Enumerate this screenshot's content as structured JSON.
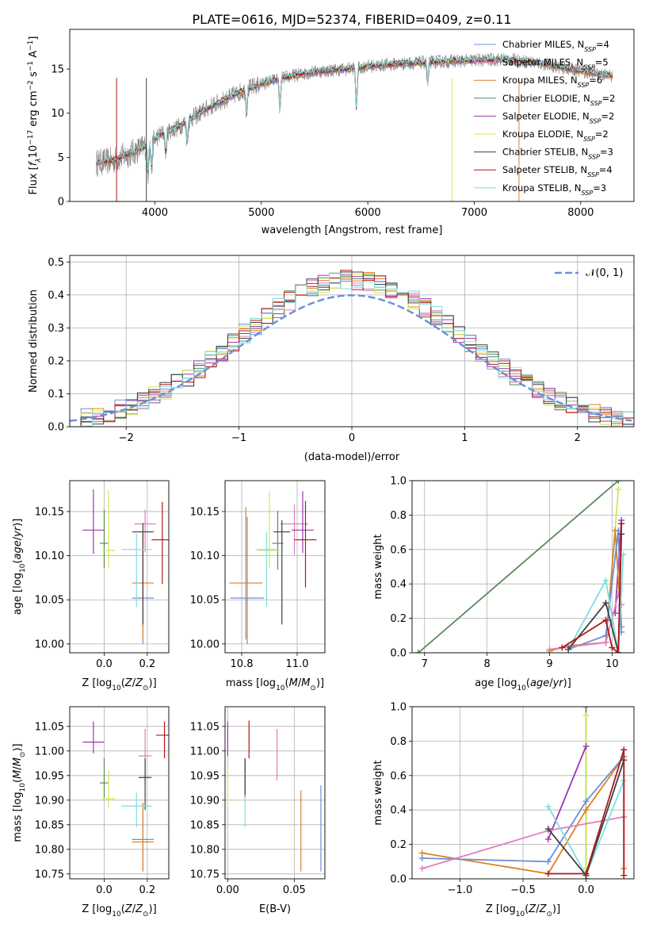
{
  "figure": {
    "title": "PLATE=0616, MJD=52374, FIBERID=0409, z=0.11"
  },
  "colors": {
    "Chabrier MILES": "#6a8fd8",
    "Salpeter MILES": "#e07fbd",
    "Kroupa MILES": "#e08020",
    "Chabrier ELODIE": "#5a8a5a",
    "Salpeter ELODIE": "#9a38b0",
    "Kroupa ELODIE": "#d0e850",
    "Chabrier STELIB": "#404040",
    "Salpeter STELIB": "#b01818",
    "Kroupa STELIB": "#7fdde0",
    "gray_data": "#808080",
    "normal_curve": "#6a8fd8"
  },
  "chart_data": [
    {
      "id": "spectrum",
      "type": "line",
      "xlabel": "wavelength [Angstrom, rest frame]",
      "ylabel": "Flux [f_λ10^-17 erg cm^-2 s^-1 A^-1]",
      "xlim": [
        3200,
        8500
      ],
      "ylim": [
        0,
        19.5
      ],
      "xticks": [
        4000,
        5000,
        6000,
        7000,
        8000
      ],
      "yticks": [
        0,
        5,
        10,
        15
      ],
      "legend_position": "upper-right",
      "legend": [
        {
          "label": "Chabrier MILES, N_SSP=4",
          "color_key": "Chabrier MILES"
        },
        {
          "label": "Salpeter MILES, N_SSP=5",
          "color_key": "Salpeter MILES"
        },
        {
          "label": "Kroupa MILES, N_SSP=6",
          "color_key": "Kroupa MILES"
        },
        {
          "label": "Chabrier ELODIE, N_SSP=2",
          "color_key": "Chabrier ELODIE"
        },
        {
          "label": "Salpeter ELODIE, N_SSP=2",
          "color_key": "Salpeter ELODIE"
        },
        {
          "label": "Kroupa ELODIE, N_SSP=2",
          "color_key": "Kroupa ELODIE"
        },
        {
          "label": "Chabrier STELIB, N_SSP=3",
          "color_key": "Chabrier STELIB"
        },
        {
          "label": "Salpeter STELIB, N_SSP=4",
          "color_key": "Salpeter STELIB"
        },
        {
          "label": "Kroupa STELIB, N_SSP=3",
          "color_key": "Kroupa STELIB"
        }
      ],
      "continuum_points": [
        [
          3450,
          4.4
        ],
        [
          3600,
          4.6
        ],
        [
          3800,
          5.6
        ],
        [
          3950,
          6.5
        ],
        [
          4050,
          7.6
        ],
        [
          4200,
          8.3
        ],
        [
          4500,
          10.6
        ],
        [
          4800,
          12.4
        ],
        [
          5000,
          13.3
        ],
        [
          5200,
          14.0
        ],
        [
          5500,
          14.7
        ],
        [
          5800,
          15.0
        ],
        [
          6000,
          15.3
        ],
        [
          6300,
          15.6
        ],
        [
          6600,
          15.8
        ],
        [
          7000,
          16.0
        ],
        [
          7300,
          16.1
        ],
        [
          7600,
          15.7
        ],
        [
          7900,
          15.0
        ],
        [
          8300,
          14.2
        ]
      ]
    },
    {
      "id": "residuals",
      "type": "line",
      "xlabel": "(data-model)/error",
      "ylabel": "Normed distribution",
      "xlim": [
        -2.5,
        2.5
      ],
      "ylim": [
        0,
        0.52
      ],
      "xticks": [
        -2,
        -1,
        0,
        1,
        2
      ],
      "yticks": [
        0.0,
        0.1,
        0.2,
        0.3,
        0.4,
        0.5
      ],
      "grid": true,
      "legend_position": "upper-right",
      "legend": [
        {
          "label": "𝒩(0, 1)"
        }
      ],
      "bin_width": 0.1
    },
    {
      "id": "age_vs_Z",
      "type": "scatter",
      "xlabel": "Z [log10(Z/Z⊙)]",
      "ylabel": "age [log10(age/yr)]",
      "xlim": [
        -0.16,
        0.3
      ],
      "ylim": [
        9.99,
        10.185
      ],
      "xticks": [
        0.0,
        0.2
      ],
      "yticks": [
        10.0,
        10.05,
        10.1,
        10.15
      ],
      "grid": true,
      "points": [
        {
          "m": "Chabrier MILES",
          "x": 0.18,
          "xerr": 0.05,
          "y": 10.052,
          "ye": [
            10.0,
            10.127
          ]
        },
        {
          "m": "Salpeter MILES",
          "x": 0.19,
          "xerr": 0.05,
          "y": 10.136,
          "ye": [
            10.104,
            10.152
          ]
        },
        {
          "m": "Kroupa MILES",
          "x": 0.18,
          "xerr": 0.05,
          "y": 10.069,
          "ye": [
            10.005,
            10.127
          ]
        },
        {
          "m": "Chabrier ELODIE",
          "x": 0.0,
          "xerr": 0.02,
          "y": 10.114,
          "ye": [
            10.086,
            10.152
          ]
        },
        {
          "m": "Salpeter ELODIE",
          "x": -0.05,
          "xerr": 0.05,
          "y": 10.129,
          "ye": [
            10.102,
            10.175
          ]
        },
        {
          "m": "Kroupa ELODIE",
          "x": 0.02,
          "xerr": 0.03,
          "y": 10.106,
          "ye": [
            10.086,
            10.174
          ]
        },
        {
          "m": "Chabrier STELIB",
          "x": 0.18,
          "xerr": 0.05,
          "y": 10.127,
          "ye": [
            10.022,
            10.137
          ]
        },
        {
          "m": "Salpeter STELIB",
          "x": 0.27,
          "xerr": 0.05,
          "y": 10.118,
          "ye": [
            10.068,
            10.161
          ]
        },
        {
          "m": "Kroupa STELIB",
          "x": 0.15,
          "xerr": 0.07,
          "y": 10.107,
          "ye": [
            10.042,
            10.125
          ]
        }
      ]
    },
    {
      "id": "age_vs_mass",
      "type": "scatter",
      "xlabel": "mass [log10(M/M⊙)]",
      "ylabel": "",
      "xlim": [
        10.74,
        11.1
      ],
      "ylim": [
        9.99,
        10.185
      ],
      "xticks": [
        10.8,
        11.0
      ],
      "yticks": [
        10.0,
        10.05,
        10.1,
        10.15
      ],
      "grid": true,
      "points": [
        {
          "m": "Chabrier MILES",
          "x": 10.82,
          "xerr": 0.06,
          "y": 10.052,
          "ye": [
            10.0,
            10.144
          ]
        },
        {
          "m": "Salpeter MILES",
          "x": 10.99,
          "xerr": 0.05,
          "y": 10.136,
          "ye": [
            10.101,
            10.158
          ]
        },
        {
          "m": "Kroupa MILES",
          "x": 10.815,
          "xerr": 0.06,
          "y": 10.069,
          "ye": [
            10.005,
            10.155
          ]
        },
        {
          "m": "Chabrier ELODIE",
          "x": 10.93,
          "xerr": 0.02,
          "y": 10.114,
          "ye": [
            10.084,
            10.151
          ]
        },
        {
          "m": "Salpeter ELODIE",
          "x": 11.02,
          "xerr": 0.04,
          "y": 10.129,
          "ye": [
            10.103,
            10.173
          ]
        },
        {
          "m": "Kroupa ELODIE",
          "x": 10.9,
          "xerr": 0.04,
          "y": 10.106,
          "ye": [
            10.086,
            10.173
          ]
        },
        {
          "m": "Chabrier STELIB",
          "x": 10.945,
          "xerr": 0.03,
          "y": 10.127,
          "ye": [
            10.022,
            10.14
          ]
        },
        {
          "m": "Salpeter STELIB",
          "x": 11.03,
          "xerr": 0.04,
          "y": 10.118,
          "ye": [
            10.064,
            10.162
          ]
        },
        {
          "m": "Kroupa STELIB",
          "x": 10.89,
          "xerr": 0.04,
          "y": 10.107,
          "ye": [
            10.042,
            10.127
          ]
        }
      ]
    },
    {
      "id": "weight_vs_age",
      "type": "line",
      "xlabel": "age [log10(age/yr)]",
      "ylabel": "mass weight",
      "xlim": [
        6.8,
        10.35
      ],
      "ylim": [
        0,
        1.0
      ],
      "xticks": [
        7,
        8,
        9,
        10
      ],
      "yticks": [
        0.0,
        0.2,
        0.4,
        0.6,
        0.8,
        1.0
      ],
      "grid": true,
      "series": [
        {
          "m": "Chabrier ELODIE",
          "x": [
            6.9,
            10.1
          ],
          "y": [
            0.0,
            1.0
          ]
        },
        {
          "m": "Kroupa ELODIE",
          "x": [
            9.9,
            10.1
          ],
          "y": [
            0.06,
            0.95
          ]
        },
        {
          "m": "Salpeter ELODIE",
          "x": [
            10.05,
            10.15
          ],
          "y": [
            0.23,
            0.77
          ]
        },
        {
          "m": "Kroupa MILES",
          "x": [
            9.0,
            9.3,
            9.9,
            10.05,
            10.15
          ],
          "y": [
            0.01,
            0.04,
            0.06,
            0.71,
            0.15
          ]
        },
        {
          "m": "Chabrier MILES",
          "x": [
            9.3,
            9.9,
            10.1,
            10.15
          ],
          "y": [
            0.02,
            0.1,
            0.71,
            0.12
          ]
        },
        {
          "m": "Salpeter MILES",
          "x": [
            9.0,
            9.9,
            10.1,
            10.15
          ],
          "y": [
            0.02,
            0.06,
            0.34,
            0.28
          ]
        },
        {
          "m": "Kroupa STELIB",
          "x": [
            9.3,
            9.9,
            10.1,
            10.18
          ],
          "y": [
            0.02,
            0.42,
            0.0,
            0.57
          ]
        },
        {
          "m": "Chabrier STELIB",
          "x": [
            9.3,
            9.9,
            10.1,
            10.15
          ],
          "y": [
            0.02,
            0.29,
            0.0,
            0.69
          ]
        },
        {
          "m": "Salpeter STELIB",
          "x": [
            9.2,
            9.9,
            10.0,
            10.1,
            10.15
          ],
          "y": [
            0.03,
            0.19,
            0.03,
            0.0,
            0.75
          ]
        }
      ]
    },
    {
      "id": "mass_vs_Z",
      "type": "scatter",
      "xlabel": "Z [log10(Z/Z⊙)]",
      "ylabel": "mass [log10(M/M⊙)]",
      "xlim": [
        -0.16,
        0.3
      ],
      "ylim": [
        10.74,
        11.09
      ],
      "xticks": [
        0.0,
        0.2
      ],
      "yticks": [
        10.75,
        10.8,
        10.85,
        10.9,
        10.95,
        11.0,
        11.05
      ],
      "grid": true,
      "points": [
        {
          "m": "Chabrier MILES",
          "x": 0.18,
          "xerr": 0.05,
          "y": 10.82,
          "ye": [
            10.755,
            10.895
          ]
        },
        {
          "m": "Salpeter MILES",
          "x": 0.19,
          "xerr": 0.03,
          "y": 10.99,
          "ye": [
            10.93,
            11.045
          ]
        },
        {
          "m": "Kroupa MILES",
          "x": 0.18,
          "xerr": 0.05,
          "y": 10.815,
          "ye": [
            10.755,
            10.895
          ]
        },
        {
          "m": "Chabrier ELODIE",
          "x": 0.0,
          "xerr": 0.02,
          "y": 10.935,
          "ye": [
            10.905,
            10.985
          ]
        },
        {
          "m": "Salpeter ELODIE",
          "x": -0.05,
          "xerr": 0.05,
          "y": 11.018,
          "ye": [
            10.995,
            11.06
          ]
        },
        {
          "m": "Kroupa ELODIE",
          "x": 0.02,
          "xerr": 0.03,
          "y": 10.903,
          "ye": [
            10.885,
            10.96
          ]
        },
        {
          "m": "Chabrier STELIB",
          "x": 0.19,
          "xerr": 0.03,
          "y": 10.946,
          "ye": [
            10.88,
            10.985
          ]
        },
        {
          "m": "Salpeter STELIB",
          "x": 0.28,
          "xerr": 0.04,
          "y": 11.032,
          "ye": [
            10.985,
            11.06
          ]
        },
        {
          "m": "Kroupa STELIB",
          "x": 0.15,
          "xerr": 0.07,
          "y": 10.888,
          "ye": [
            10.845,
            10.915
          ]
        }
      ]
    },
    {
      "id": "mass_vs_ebv",
      "type": "scatter",
      "xlabel": "E(B-V)",
      "ylabel": "",
      "xlim": [
        -0.002,
        0.073
      ],
      "ylim": [
        10.74,
        11.09
      ],
      "xticks": [
        0.0,
        0.05
      ],
      "yticks": [
        10.75,
        10.8,
        10.85,
        10.9,
        10.95,
        11.0,
        11.05
      ],
      "grid": true,
      "points": [
        {
          "m": "Chabrier MILES",
          "x": 0.07,
          "xerr": 0,
          "y": 10.82,
          "ye": [
            10.755,
            10.93
          ]
        },
        {
          "m": "Salpeter MILES",
          "x": 0.037,
          "xerr": 0,
          "y": 10.99,
          "ye": [
            10.94,
            11.045
          ]
        },
        {
          "m": "Kroupa MILES",
          "x": 0.055,
          "xerr": 0,
          "y": 10.815,
          "ye": [
            10.755,
            10.92
          ]
        },
        {
          "m": "Chabrier ELODIE",
          "x": 0.013,
          "xerr": 0,
          "y": 10.935,
          "ye": [
            10.905,
            10.985
          ]
        },
        {
          "m": "Salpeter ELODIE",
          "x": 0.0,
          "xerr": 0,
          "y": 11.018,
          "ye": [
            10.99,
            11.06
          ]
        },
        {
          "m": "Kroupa ELODIE",
          "x": 0.0,
          "xerr": 0,
          "y": 10.903,
          "ye": [
            10.885,
            10.965
          ]
        },
        {
          "m": "Chabrier STELIB",
          "x": 0.013,
          "xerr": 0,
          "y": 10.946,
          "ye": [
            10.905,
            10.985
          ]
        },
        {
          "m": "Salpeter STELIB",
          "x": 0.016,
          "xerr": 0,
          "y": 11.032,
          "ye": [
            10.985,
            11.062
          ]
        },
        {
          "m": "Kroupa STELIB",
          "x": 0.013,
          "xerr": 0,
          "y": 10.888,
          "ye": [
            10.845,
            10.91
          ]
        }
      ]
    },
    {
      "id": "weight_vs_Z",
      "type": "line",
      "xlabel": "Z [log10(Z/Z⊙)]",
      "ylabel": "mass weight",
      "xlim": [
        -1.38,
        0.38
      ],
      "ylim": [
        0,
        1.0
      ],
      "xticks": [
        -1.0,
        -0.5,
        0.0
      ],
      "yticks": [
        0.0,
        0.2,
        0.4,
        0.6,
        0.8,
        1.0
      ],
      "grid": true,
      "series": [
        {
          "m": "Chabrier ELODIE",
          "x": [
            0.0,
            0.0
          ],
          "y": [
            0.0,
            1.0
          ]
        },
        {
          "m": "Kroupa ELODIE",
          "x": [
            0.0,
            0.0
          ],
          "y": [
            0.06,
            0.95
          ]
        },
        {
          "m": "Salpeter ELODIE",
          "x": [
            -0.3,
            0.0
          ],
          "y": [
            0.23,
            0.77
          ]
        },
        {
          "m": "Kroupa MILES",
          "x": [
            -1.3,
            -0.3,
            0.0,
            0.3,
            0.3
          ],
          "y": [
            0.15,
            0.03,
            0.4,
            0.71,
            0.06
          ]
        },
        {
          "m": "Chabrier MILES",
          "x": [
            -1.3,
            -0.3,
            0.0,
            0.3
          ],
          "y": [
            0.12,
            0.1,
            0.45,
            0.71
          ]
        },
        {
          "m": "Salpeter MILES",
          "x": [
            -1.3,
            -0.3,
            0.3
          ],
          "y": [
            0.06,
            0.28,
            0.36
          ]
        },
        {
          "m": "Kroupa STELIB",
          "x": [
            -0.3,
            0.0,
            0.3
          ],
          "y": [
            0.42,
            0.02,
            0.57
          ]
        },
        {
          "m": "Chabrier STELIB",
          "x": [
            -0.3,
            0.0,
            0.3
          ],
          "y": [
            0.29,
            0.02,
            0.69
          ]
        },
        {
          "m": "Salpeter STELIB",
          "x": [
            -0.3,
            0.0,
            0.3,
            0.3
          ],
          "y": [
            0.03,
            0.03,
            0.75,
            0.02
          ]
        }
      ]
    }
  ]
}
